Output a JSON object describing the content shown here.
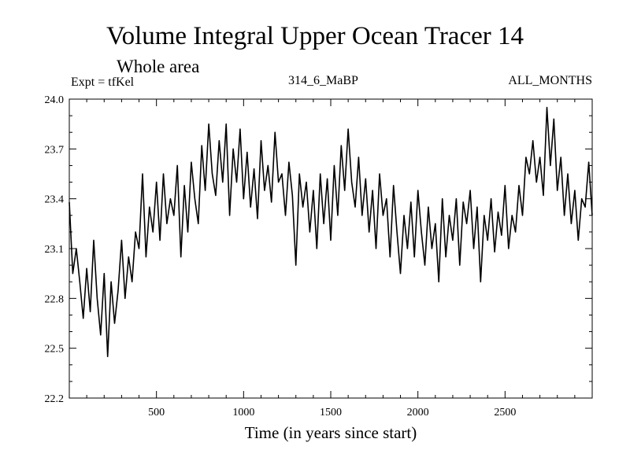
{
  "header": {
    "title": "Volume Integral Upper Ocean Tracer 14",
    "subtitle": "Whole area",
    "experiment": "Expt = tfKel",
    "run": "314_6_MaBP",
    "months": "ALL_MONTHS"
  },
  "chart_data": {
    "type": "line",
    "title": "Volume Integral Upper Ocean Tracer 14",
    "subtitle": "Whole area",
    "xlabel": "Time (in years since start)",
    "ylabel": "",
    "xlim": [
      0,
      3000
    ],
    "ylim": [
      22.2,
      24.0
    ],
    "xticks": [
      500,
      1000,
      1500,
      2000,
      2500
    ],
    "yticks": [
      22.2,
      22.5,
      22.8,
      23.1,
      23.4,
      23.7,
      24.0
    ],
    "ytick_labels": [
      "22.2",
      "22.5",
      "22.8",
      "23.1",
      "23.4",
      "23.7",
      "24.0"
    ],
    "grid": false,
    "series": [
      {
        "color": "#000000",
        "x": [
          0,
          20,
          40,
          60,
          80,
          100,
          120,
          140,
          160,
          180,
          200,
          220,
          240,
          260,
          280,
          300,
          320,
          340,
          360,
          380,
          400,
          420,
          440,
          460,
          480,
          500,
          520,
          540,
          560,
          580,
          600,
          620,
          640,
          660,
          680,
          700,
          720,
          740,
          760,
          780,
          800,
          820,
          840,
          860,
          880,
          900,
          920,
          940,
          960,
          980,
          1000,
          1020,
          1040,
          1060,
          1080,
          1100,
          1120,
          1140,
          1160,
          1180,
          1200,
          1220,
          1240,
          1260,
          1280,
          1300,
          1320,
          1340,
          1360,
          1380,
          1400,
          1420,
          1440,
          1460,
          1480,
          1500,
          1520,
          1540,
          1560,
          1580,
          1600,
          1620,
          1640,
          1660,
          1680,
          1700,
          1720,
          1740,
          1760,
          1780,
          1800,
          1820,
          1840,
          1860,
          1880,
          1900,
          1920,
          1940,
          1960,
          1980,
          2000,
          2020,
          2040,
          2060,
          2080,
          2100,
          2120,
          2140,
          2160,
          2180,
          2200,
          2220,
          2240,
          2260,
          2280,
          2300,
          2320,
          2340,
          2360,
          2380,
          2400,
          2420,
          2440,
          2460,
          2480,
          2500,
          2520,
          2540,
          2560,
          2580,
          2600,
          2620,
          2640,
          2660,
          2680,
          2700,
          2720,
          2740,
          2760,
          2780,
          2800,
          2820,
          2840,
          2860,
          2880,
          2900,
          2920,
          2940,
          2960,
          2980,
          3000
        ],
        "values": [
          23.38,
          22.95,
          23.1,
          22.9,
          22.68,
          22.98,
          22.72,
          23.15,
          22.8,
          22.58,
          22.95,
          22.45,
          22.9,
          22.65,
          22.85,
          23.15,
          22.8,
          23.05,
          22.9,
          23.2,
          23.1,
          23.55,
          23.05,
          23.35,
          23.2,
          23.5,
          23.15,
          23.55,
          23.25,
          23.4,
          23.3,
          23.6,
          23.05,
          23.48,
          23.2,
          23.62,
          23.4,
          23.25,
          23.72,
          23.45,
          23.85,
          23.55,
          23.42,
          23.75,
          23.5,
          23.85,
          23.3,
          23.7,
          23.5,
          23.82,
          23.4,
          23.68,
          23.35,
          23.58,
          23.28,
          23.75,
          23.45,
          23.6,
          23.38,
          23.8,
          23.5,
          23.55,
          23.3,
          23.62,
          23.42,
          23.0,
          23.55,
          23.35,
          23.5,
          23.2,
          23.45,
          23.1,
          23.55,
          23.25,
          23.52,
          23.15,
          23.6,
          23.3,
          23.72,
          23.45,
          23.82,
          23.5,
          23.35,
          23.65,
          23.3,
          23.52,
          23.2,
          23.45,
          23.1,
          23.55,
          23.3,
          23.4,
          23.05,
          23.48,
          23.2,
          22.95,
          23.3,
          23.1,
          23.38,
          23.05,
          23.45,
          23.2,
          23.0,
          23.35,
          23.1,
          23.25,
          22.9,
          23.4,
          23.05,
          23.3,
          23.15,
          23.4,
          23.0,
          23.38,
          23.25,
          23.45,
          23.1,
          23.35,
          22.9,
          23.3,
          23.15,
          23.4,
          23.08,
          23.32,
          23.18,
          23.48,
          23.1,
          23.3,
          23.2,
          23.48,
          23.3,
          23.65,
          23.55,
          23.75,
          23.5,
          23.65,
          23.42,
          23.95,
          23.6,
          23.88,
          23.45,
          23.65,
          23.3,
          23.55,
          23.25,
          23.45,
          23.15,
          23.4,
          23.35,
          23.62,
          23.3
        ]
      }
    ]
  }
}
